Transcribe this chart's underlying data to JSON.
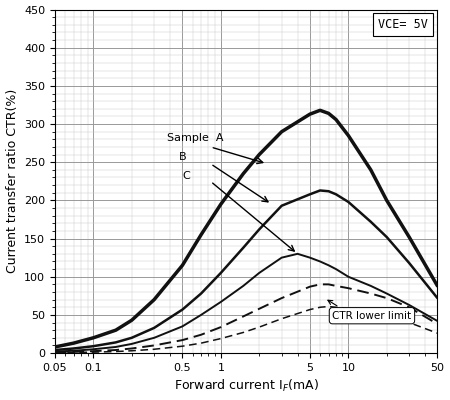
{
  "xlabel": "Forward current IF(mA)",
  "ylabel": "Current transfer ratio CTR(%)",
  "vce_label": "VCE= 5V",
  "xlim": [
    0.05,
    50
  ],
  "ylim": [
    0,
    450
  ],
  "yticks": [
    0,
    50,
    100,
    150,
    200,
    250,
    300,
    350,
    400,
    450
  ],
  "xtick_labels": [
    "0.05",
    "0.1",
    "0.5",
    "1",
    "5",
    "10",
    "50"
  ],
  "xtick_positions": [
    0.05,
    0.1,
    0.5,
    1,
    5,
    10,
    50
  ],
  "background_color": "#ffffff",
  "line_color": "#111111",
  "curve_A": {
    "x": [
      0.05,
      0.07,
      0.1,
      0.15,
      0.2,
      0.3,
      0.5,
      0.7,
      1.0,
      1.5,
      2.0,
      3.0,
      5.0,
      6.0,
      7.0,
      8.0,
      10.0,
      15.0,
      20.0,
      30.0,
      50.0
    ],
    "y": [
      8,
      13,
      20,
      30,
      43,
      70,
      115,
      155,
      195,
      235,
      260,
      290,
      313,
      318,
      314,
      306,
      285,
      240,
      200,
      152,
      88
    ]
  },
  "curve_B": {
    "x": [
      0.05,
      0.07,
      0.1,
      0.15,
      0.2,
      0.3,
      0.5,
      0.7,
      1.0,
      1.5,
      2.0,
      3.0,
      5.0,
      6.0,
      7.0,
      8.0,
      10.0,
      15.0,
      20.0,
      30.0,
      50.0
    ],
    "y": [
      4,
      6,
      9,
      14,
      20,
      33,
      57,
      78,
      105,
      138,
      162,
      193,
      208,
      213,
      212,
      208,
      198,
      172,
      152,
      118,
      72
    ]
  },
  "curve_C": {
    "x": [
      0.05,
      0.07,
      0.1,
      0.15,
      0.2,
      0.3,
      0.5,
      0.7,
      1.0,
      1.5,
      2.0,
      3.0,
      4.0,
      5.0,
      6.0,
      7.0,
      8.0,
      10.0,
      15.0,
      20.0,
      30.0,
      50.0
    ],
    "y": [
      2,
      3,
      5,
      8,
      12,
      20,
      35,
      50,
      67,
      88,
      105,
      125,
      130,
      125,
      120,
      115,
      110,
      100,
      88,
      78,
      63,
      42
    ]
  },
  "curve_lower1": {
    "x": [
      0.05,
      0.07,
      0.1,
      0.15,
      0.2,
      0.3,
      0.5,
      0.7,
      1.0,
      1.5,
      2.0,
      3.0,
      5.0,
      6.0,
      7.0,
      8.0,
      10.0,
      15.0,
      20.0,
      30.0,
      50.0
    ],
    "y": [
      1.0,
      1.5,
      2.5,
      4,
      6,
      10,
      17,
      24,
      34,
      48,
      58,
      72,
      87,
      90,
      90,
      88,
      85,
      78,
      72,
      60,
      38
    ]
  },
  "curve_lower2": {
    "x": [
      0.05,
      0.07,
      0.1,
      0.15,
      0.2,
      0.3,
      0.5,
      0.7,
      1.0,
      1.5,
      2.0,
      3.0,
      5.0,
      6.0,
      7.0,
      8.0,
      10.0,
      15.0,
      20.0,
      30.0,
      50.0
    ],
    "y": [
      0.5,
      0.8,
      1.2,
      2,
      3,
      5,
      9,
      13,
      19,
      27,
      34,
      45,
      57,
      60,
      61,
      60,
      58,
      53,
      49,
      40,
      26
    ]
  }
}
